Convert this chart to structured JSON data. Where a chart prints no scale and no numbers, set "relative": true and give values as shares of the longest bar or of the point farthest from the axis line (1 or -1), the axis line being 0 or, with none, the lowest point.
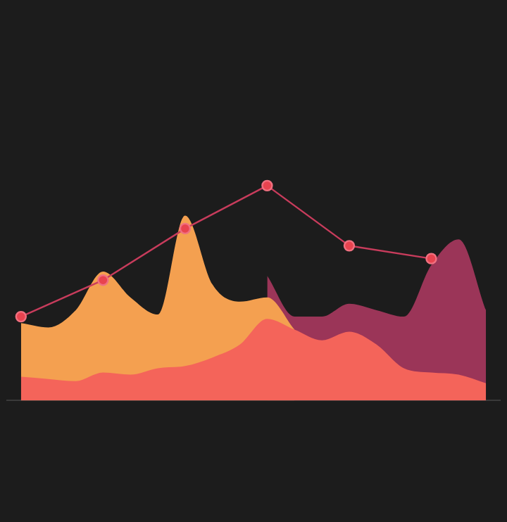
{
  "chart_data": {
    "type": "area",
    "relative": true,
    "categories": [
      null,
      null,
      null,
      null,
      null,
      null,
      null,
      null,
      null,
      null,
      null,
      null,
      null,
      null,
      null,
      null,
      null,
      null
    ],
    "series": [
      {
        "type": "line",
        "color": "#c83c5c",
        "marker": "circle",
        "values": [
          0.39,
          null,
          null,
          0.56,
          null,
          null,
          0.8,
          null,
          null,
          1,
          null,
          null,
          0.72,
          null,
          null,
          0.66,
          null,
          null
        ]
      },
      {
        "color": "#f4645a",
        "values": [
          0.11,
          0.1,
          0.09,
          0.13,
          0.12,
          0.15,
          0.16,
          0.2,
          0.26,
          0.38,
          0.33,
          0.28,
          0.32,
          0.26,
          0.15,
          0.13,
          0.12,
          0.08
        ]
      },
      {
        "color": "#f4a050",
        "values": [
          0.36,
          0.34,
          0.42,
          0.6,
          0.48,
          0.4,
          0.86,
          0.54,
          0.46,
          0.48,
          0.33,
          null,
          null,
          null,
          null,
          null,
          null,
          null
        ]
      },
      {
        "color": "#9b3558",
        "values": [
          null,
          null,
          null,
          null,
          null,
          null,
          null,
          null,
          null,
          0.58,
          0.39,
          0.39,
          0.45,
          0.42,
          0.39,
          0.63,
          0.75,
          0.42
        ]
      }
    ],
    "legend": false
  }
}
